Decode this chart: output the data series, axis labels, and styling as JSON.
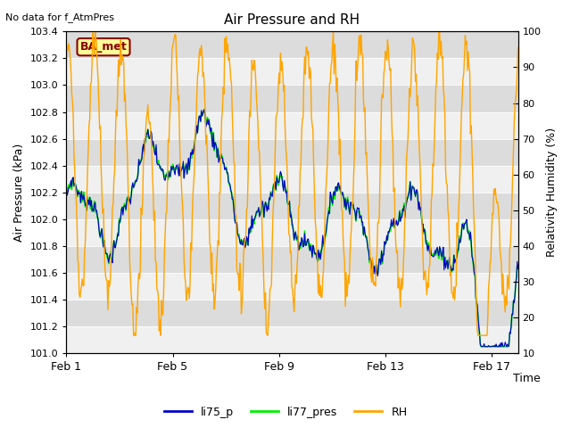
{
  "title": "Air Pressure and RH",
  "top_left_text": "No data for f_AtmPres",
  "box_label": "BA_met",
  "xlabel": "Time",
  "ylabel_left": "Air Pressure (kPa)",
  "ylabel_right": "Relativity Humidity (%)",
  "ylim_left": [
    101.0,
    103.4
  ],
  "ylim_right": [
    10,
    100
  ],
  "yticks_left": [
    101.0,
    101.2,
    101.4,
    101.6,
    101.8,
    102.0,
    102.2,
    102.4,
    102.6,
    102.8,
    103.0,
    103.2,
    103.4
  ],
  "yticks_right": [
    10,
    20,
    30,
    40,
    50,
    60,
    70,
    80,
    90,
    100
  ],
  "xtick_labels": [
    "Feb 1",
    "Feb 5",
    "Feb 9",
    "Feb 13",
    "Feb 17"
  ],
  "xtick_pos": [
    0,
    4,
    8,
    12,
    16
  ],
  "xlim": [
    0,
    17
  ],
  "colors": {
    "li75_p": "#0000CC",
    "li77_pres": "#00EE00",
    "RH": "#FFA500",
    "band_dark": "#DCDCDC",
    "band_light": "#F0F0F0",
    "box_fill": "#FFFF99",
    "box_edge": "#8B0000",
    "box_text": "#8B0000"
  },
  "legend_entries": [
    "li75_p",
    "li77_pres",
    "RH"
  ],
  "band_edges": [
    101.0,
    101.2,
    101.4,
    101.6,
    101.8,
    102.0,
    102.2,
    102.4,
    102.6,
    102.8,
    103.0,
    103.2,
    103.4
  ],
  "figsize": [
    6.4,
    4.8
  ],
  "dpi": 100
}
